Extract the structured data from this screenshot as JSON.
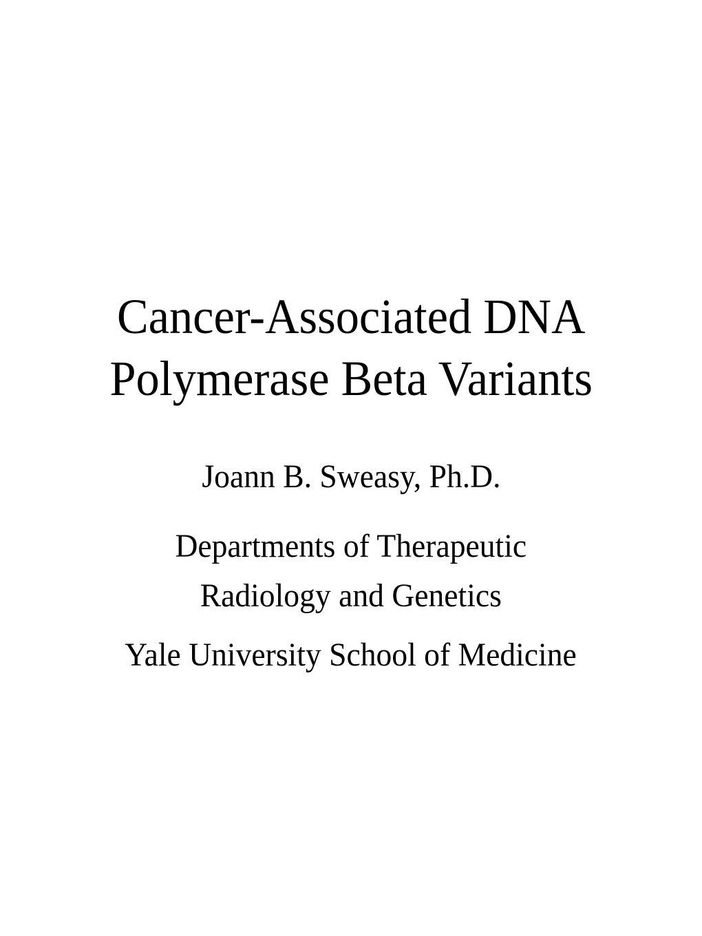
{
  "slide": {
    "title_line1": "Cancer-Associated DNA",
    "title_line2": "Polymerase Beta Variants",
    "author": "Joann B. Sweasy, Ph.D.",
    "department_line1": "Departments of Therapeutic",
    "department_line2": "Radiology and Genetics",
    "institution": "Yale University School of Medicine",
    "background_color": "#ffffff",
    "text_color": "#000000",
    "font_family": "Times New Roman",
    "title_fontsize": 72,
    "body_fontsize": 48
  }
}
